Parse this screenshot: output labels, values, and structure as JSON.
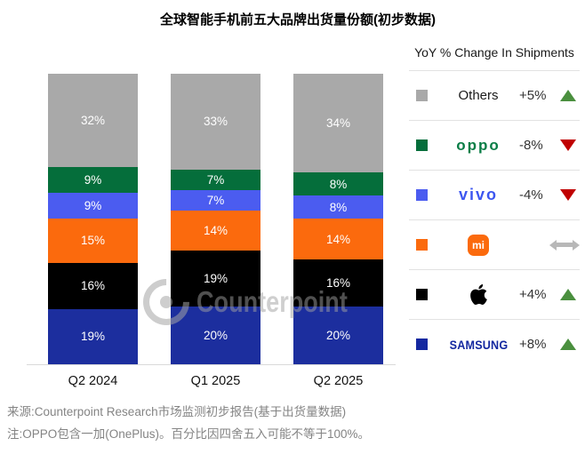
{
  "title": "全球智能手机前五大品牌出货量份额(初步数据)",
  "watermark": {
    "text": "Counterpoint"
  },
  "chart_data": {
    "type": "bar",
    "stacked": true,
    "title": "全球智能手机前五大品牌出货量份额(初步数据)",
    "categories": [
      "Q2 2024",
      "Q1 2025",
      "Q2 2025"
    ],
    "series": [
      {
        "name": "SAMSUNG",
        "color": "#1c2e9e",
        "values": [
          19,
          20,
          20
        ]
      },
      {
        "name": "Apple",
        "color": "#000000",
        "values": [
          16,
          19,
          16
        ]
      },
      {
        "name": "Xiaomi",
        "color": "#fb6a0d",
        "values": [
          15,
          14,
          14
        ]
      },
      {
        "name": "vivo",
        "color": "#4b5cf0",
        "values": [
          9,
          7,
          8
        ]
      },
      {
        "name": "OPPO",
        "color": "#056e3b",
        "values": [
          9,
          7,
          8
        ]
      },
      {
        "name": "Others",
        "color": "#a9a9a9",
        "values": [
          32,
          33,
          34
        ]
      }
    ],
    "value_unit": "%",
    "ylim": [
      0,
      100
    ],
    "legend_position": "right",
    "grid": false
  },
  "legend": {
    "header": "YoY % Change In Shipments",
    "rows": [
      {
        "brand": "others",
        "label": "Others",
        "swatch": "#a9a9a9",
        "change": "+5%",
        "direction": "up"
      },
      {
        "brand": "oppo",
        "label": "oppo",
        "swatch": "#056e3b",
        "change": "-8%",
        "direction": "down"
      },
      {
        "brand": "vivo",
        "label": "vivo",
        "swatch": "#4b5cf0",
        "change": "-4%",
        "direction": "down"
      },
      {
        "brand": "xiaomi",
        "label": "mi",
        "swatch": "#fb6a0d",
        "change": "",
        "direction": "flat"
      },
      {
        "brand": "apple",
        "label": "",
        "swatch": "#000000",
        "change": "+4%",
        "direction": "up"
      },
      {
        "brand": "samsung",
        "label": "SAMSUNG",
        "swatch": "#1428a0",
        "change": "+8%",
        "direction": "up"
      }
    ],
    "trend_colors": {
      "up": "#4a8f3e",
      "down": "#c00000",
      "flat": "#b8b8b8"
    }
  },
  "footer": {
    "source": "来源:Counterpoint Research市场监测初步报告(基于出货量数据)",
    "note": "注:OPPO包含一加(OnePlus)。百分比因四舍五入可能不等于100%。"
  }
}
